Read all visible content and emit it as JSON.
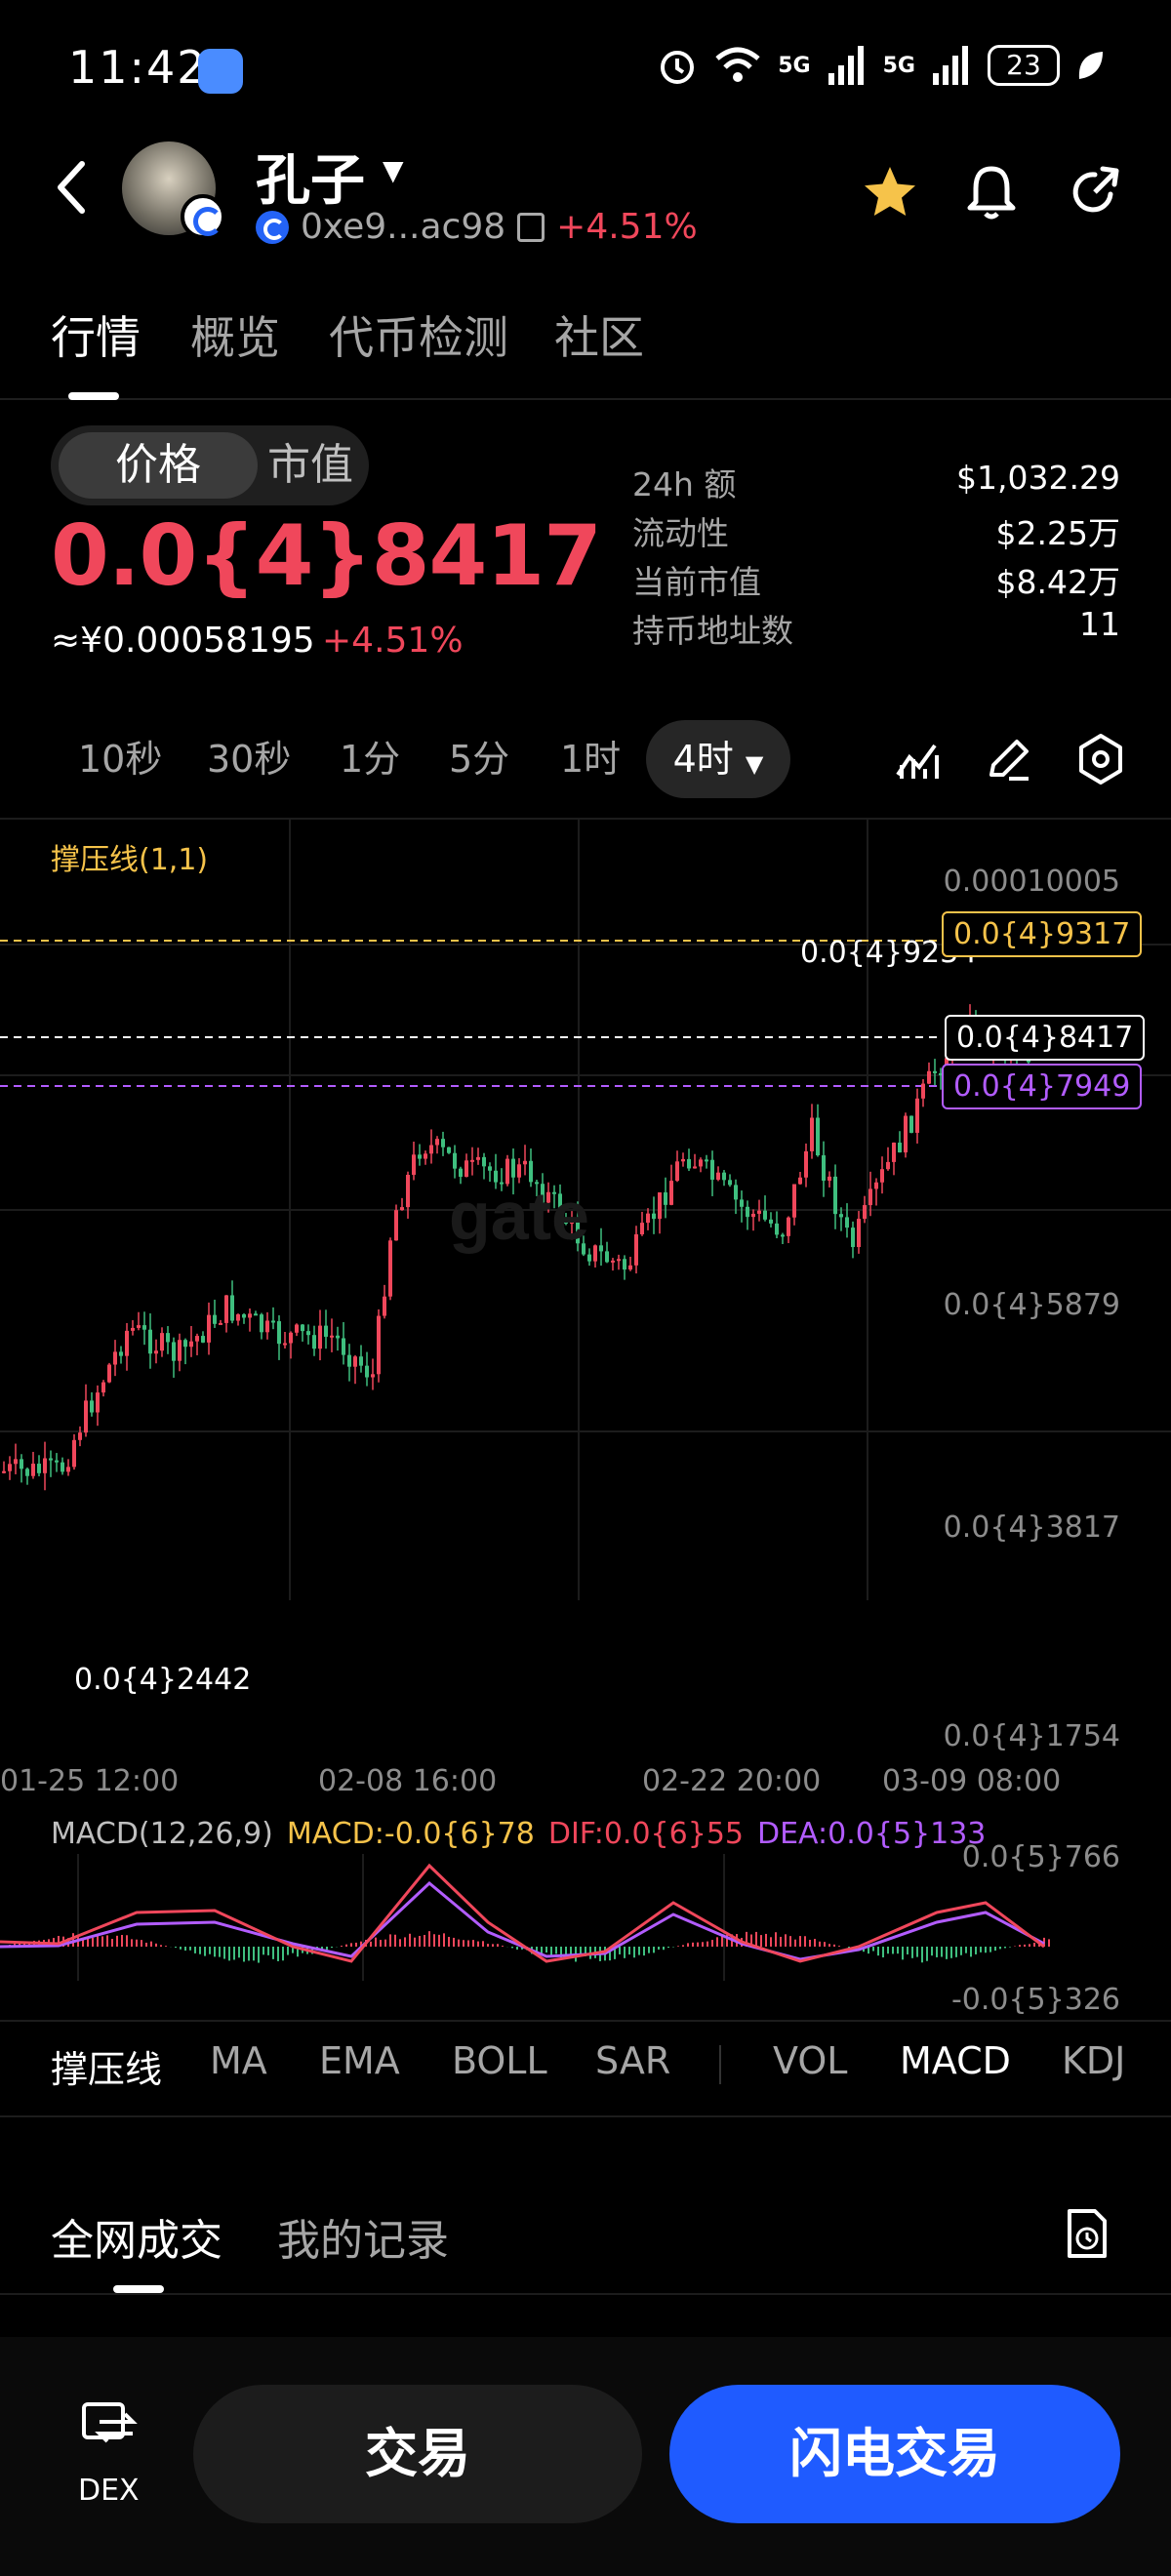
{
  "status_bar": {
    "time": "11:42",
    "battery": "23",
    "net1": "5G",
    "net2": "5G"
  },
  "header": {
    "title": "孔子",
    "address": "0xe9...ac98",
    "change_pct": "+4.51%"
  },
  "tabs": [
    "行情",
    "概览",
    "代币检测",
    "社区"
  ],
  "price_toggle": {
    "price": "价格",
    "market_cap": "市值"
  },
  "price": {
    "main": "0.0{4}8417",
    "cny": "≈¥0.00058195",
    "cny_change": "+4.51%"
  },
  "stats": [
    {
      "label": "24h  额",
      "value": "$1,032.29"
    },
    {
      "label": "流动性",
      "value": "$2.25万"
    },
    {
      "label": "当前市值",
      "value": "$8.42万"
    },
    {
      "label": "持币地址数",
      "value": "11"
    }
  ],
  "timeframes": [
    "10秒",
    "30秒",
    "1分",
    "5分",
    "1时",
    "4时"
  ],
  "chart": {
    "indicator_legend": "撑压线(1,1)",
    "y_ticks": [
      "0.00010005",
      "0.0{4}5879",
      "0.0{4}3817",
      "0.0{4}1754"
    ],
    "x_ticks": [
      "01-25 12:00",
      "02-08 16:00",
      "02-22 20:00",
      "03-09 08:00"
    ],
    "high_label": "0.0{4}9234",
    "low_label": "0.0{4}2442",
    "tag_resistance": "0.0{4}9317",
    "tag_current": "0.0{4}8417",
    "tag_support": "0.0{4}7949",
    "colors": {
      "up": "#f0475b",
      "down": "#3fbf7f",
      "resistance": "#f6c34a",
      "support": "#b25cff"
    }
  },
  "macd": {
    "title": "MACD(12,26,9)",
    "macd": "MACD:-0.0{6}78",
    "dif": "DIF:0.0{6}55",
    "dea": "DEA:0.0{5}133",
    "top": "0.0{5}766",
    "bottom": "-0.0{5}326"
  },
  "indicator_tabs": [
    "撑压线",
    "MA",
    "EMA",
    "BOLL",
    "SAR",
    "VOL",
    "MACD",
    "KDJ"
  ],
  "trade_tabs": [
    "全网成交",
    "我的记录"
  ],
  "bottom": {
    "dex": "DEX",
    "trade": "交易",
    "flash_trade": "闪电交易"
  }
}
